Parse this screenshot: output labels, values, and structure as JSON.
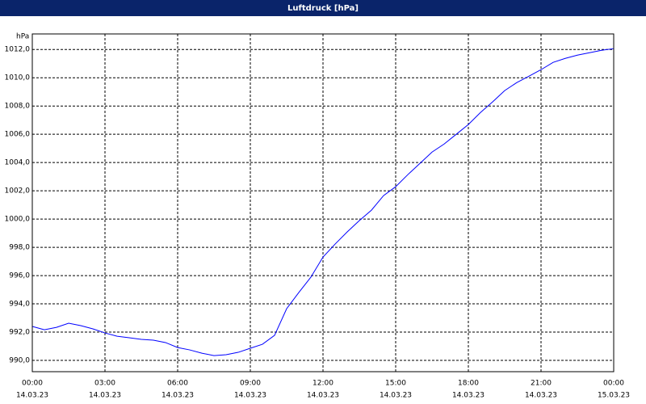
{
  "chart_data": {
    "type": "line",
    "title": "Luftdruck [hPa]",
    "y_unit": "hPa",
    "x": [
      0,
      0.5,
      1,
      1.5,
      2,
      2.5,
      3,
      3.5,
      4,
      4.5,
      5,
      5.5,
      6,
      6.5,
      7,
      7.5,
      8,
      8.5,
      9,
      9.5,
      10,
      10.5,
      11,
      11.5,
      12,
      12.5,
      13,
      13.5,
      14,
      14.5,
      15,
      15.5,
      16,
      16.5,
      17,
      17.5,
      18,
      18.5,
      19,
      19.5,
      20,
      20.5,
      21,
      21.5,
      22,
      22.5,
      23,
      23.5,
      24
    ],
    "series": [
      {
        "name": "Luftdruck",
        "color": "#0000ff",
        "values": [
          992.4,
          992.17,
          992.34,
          992.63,
          992.46,
          992.23,
          991.94,
          991.71,
          991.6,
          991.49,
          991.43,
          991.26,
          990.91,
          990.74,
          990.51,
          990.34,
          990.4,
          990.57,
          990.86,
          991.14,
          991.77,
          993.66,
          994.8,
          995.89,
          997.31,
          998.23,
          999.09,
          999.89,
          1000.63,
          1001.66,
          1002.29,
          1003.14,
          1003.94,
          1004.74,
          1005.31,
          1006.0,
          1006.69,
          1007.54,
          1008.29,
          1009.09,
          1009.66,
          1010.11,
          1010.57,
          1011.09,
          1011.37,
          1011.6,
          1011.77,
          1011.94,
          1012.06
        ]
      }
    ],
    "xlim": [
      0,
      24
    ],
    "xticks": [
      {
        "value": 0,
        "label": "00:00",
        "date": "14.03.23"
      },
      {
        "value": 3,
        "label": "03:00",
        "date": "14.03.23"
      },
      {
        "value": 6,
        "label": "06:00",
        "date": "14.03.23"
      },
      {
        "value": 9,
        "label": "09:00",
        "date": "14.03.23"
      },
      {
        "value": 12,
        "label": "12:00",
        "date": "14.03.23"
      },
      {
        "value": 15,
        "label": "15:00",
        "date": "14.03.23"
      },
      {
        "value": 18,
        "label": "18:00",
        "date": "14.03.23"
      },
      {
        "value": 21,
        "label": "21:00",
        "date": "14.03.23"
      },
      {
        "value": 24,
        "label": "00:00",
        "date": "15.03.23"
      }
    ],
    "ylim": [
      989.2,
      1013.1
    ],
    "yticks": [
      {
        "value": 990,
        "label": "990,0"
      },
      {
        "value": 992,
        "label": "992,0"
      },
      {
        "value": 994,
        "label": "994,0"
      },
      {
        "value": 996,
        "label": "996,0"
      },
      {
        "value": 998,
        "label": "998,0"
      },
      {
        "value": 1000,
        "label": "1000,0"
      },
      {
        "value": 1002,
        "label": "1002,0"
      },
      {
        "value": 1004,
        "label": "1004,0"
      },
      {
        "value": 1006,
        "label": "1006,0"
      },
      {
        "value": 1008,
        "label": "1008,0"
      },
      {
        "value": 1010,
        "label": "1010,0"
      },
      {
        "value": 1012,
        "label": "1012,0"
      }
    ],
    "grid": true
  }
}
